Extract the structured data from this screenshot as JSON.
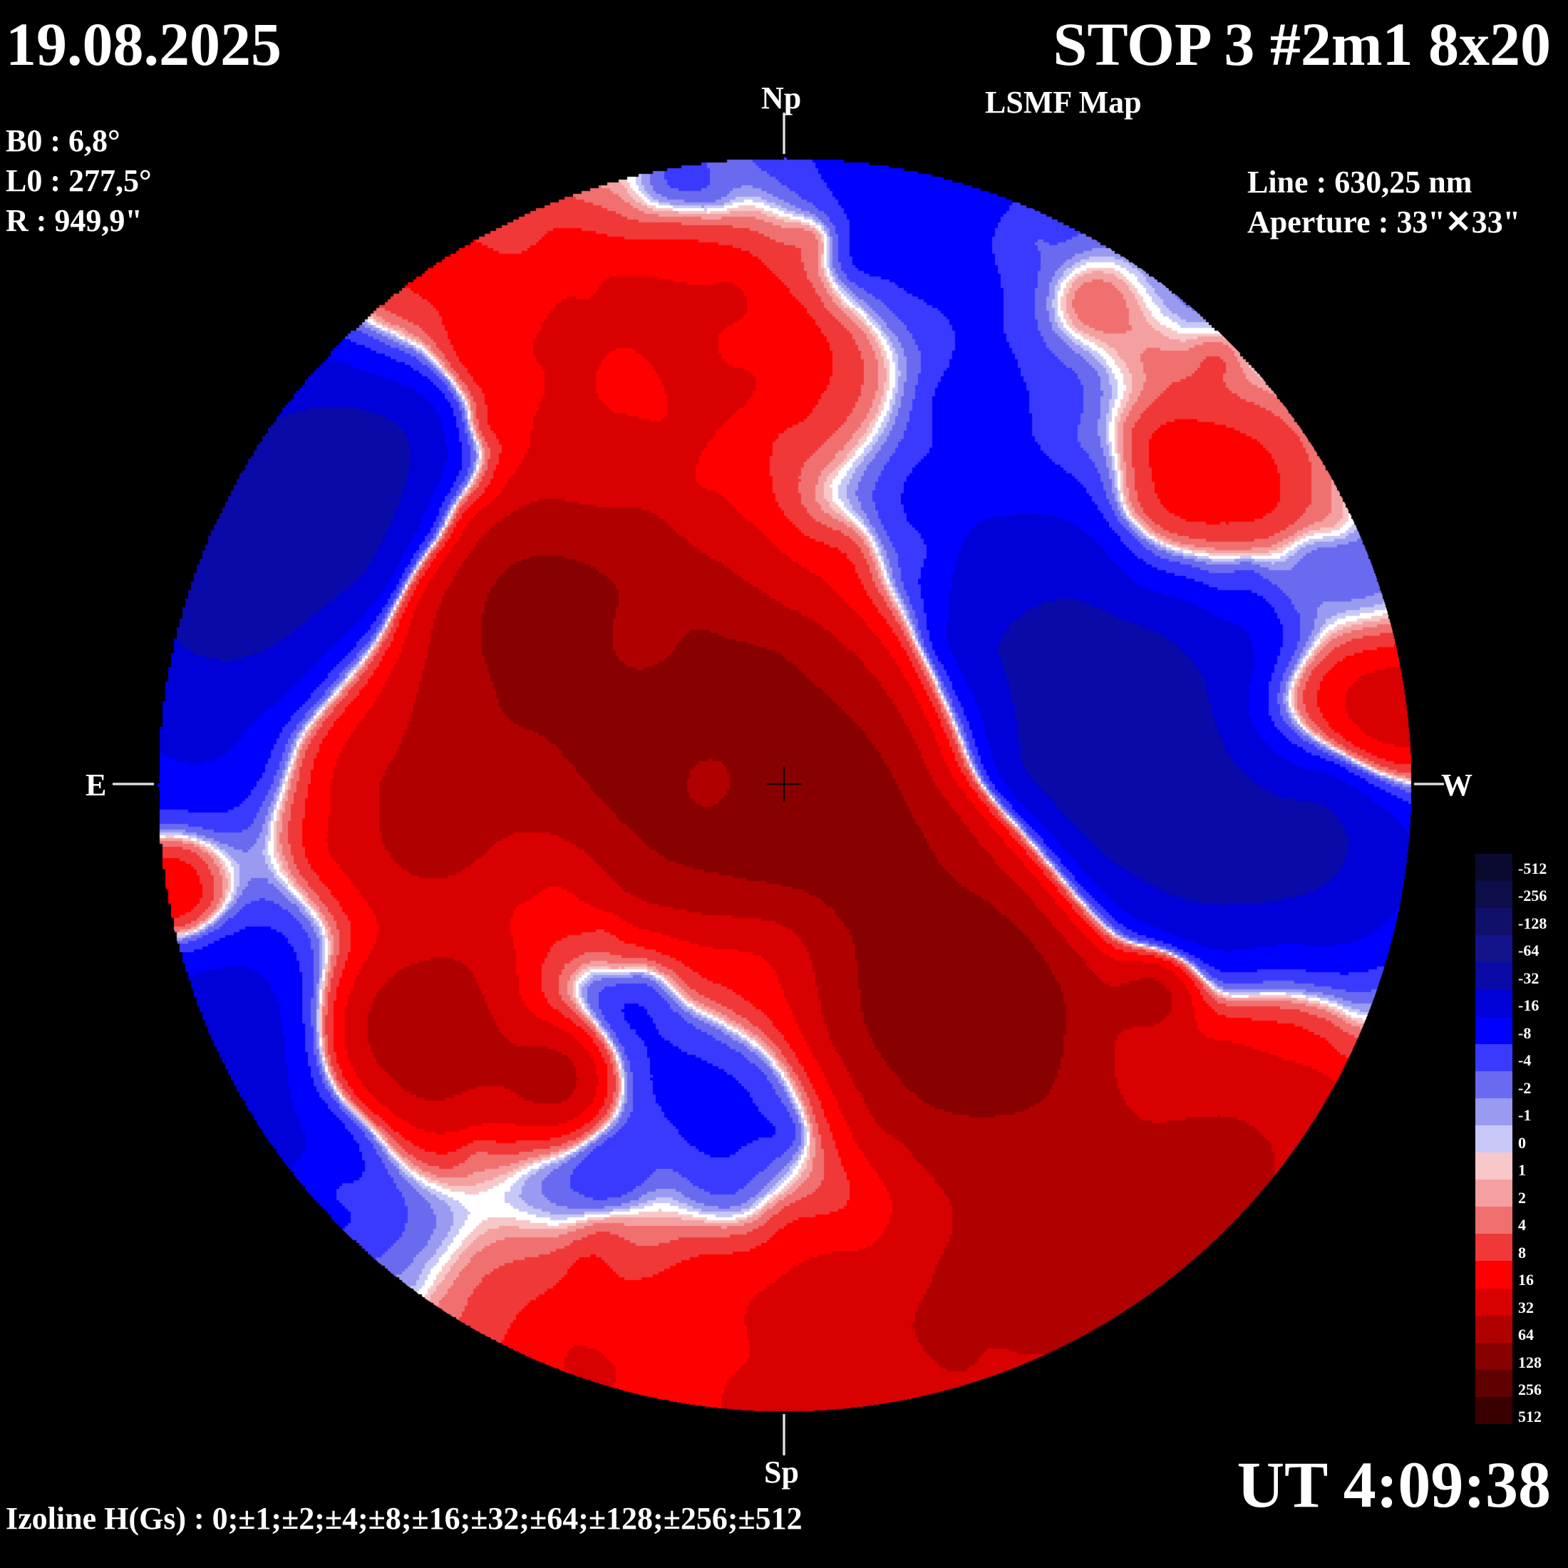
{
  "date": "19.08.2025",
  "title": "STOP 3 #2m1 8x20",
  "subtitle": "LSMF  Map",
  "params": {
    "b0": "B0 : 6,8°",
    "l0": "L0 : 277,5°",
    "r": "R  : 949,9\""
  },
  "line": "Line :  630,25 nm",
  "aperture": "Aperture : 33\"✕33\"",
  "directions": {
    "north": "Np",
    "south": "Sp",
    "east": "E",
    "west": "W"
  },
  "ut": "UT 4:09:38",
  "isolines": "Izoline H(Gs) : 0;±1;±2;±4;±8;±16;±32;±64;±128;±256;±512",
  "legend": {
    "levels": [
      "-512",
      "-256",
      "-128",
      "-64",
      "-32",
      "-16",
      "-8",
      "-4",
      "-2",
      "-1",
      "0",
      "1",
      "2",
      "4",
      "8",
      "16",
      "32",
      "64",
      "128",
      "256",
      "512"
    ],
    "colors": [
      "#0a0a30",
      "#0d0d4a",
      "#10106a",
      "#13138a",
      "#0a0aa8",
      "#0000d8",
      "#0000ff",
      "#3a3aff",
      "#6a6af0",
      "#9a9af0",
      "#c8c8f8",
      "#f8c8c8",
      "#f4a0a0",
      "#f07070",
      "#f03838",
      "#ff0000",
      "#d80000",
      "#b00000",
      "#880000",
      "#600000",
      "#3a0000"
    ]
  },
  "colors": {
    "background": "#000000",
    "text": "#ffffff"
  }
}
